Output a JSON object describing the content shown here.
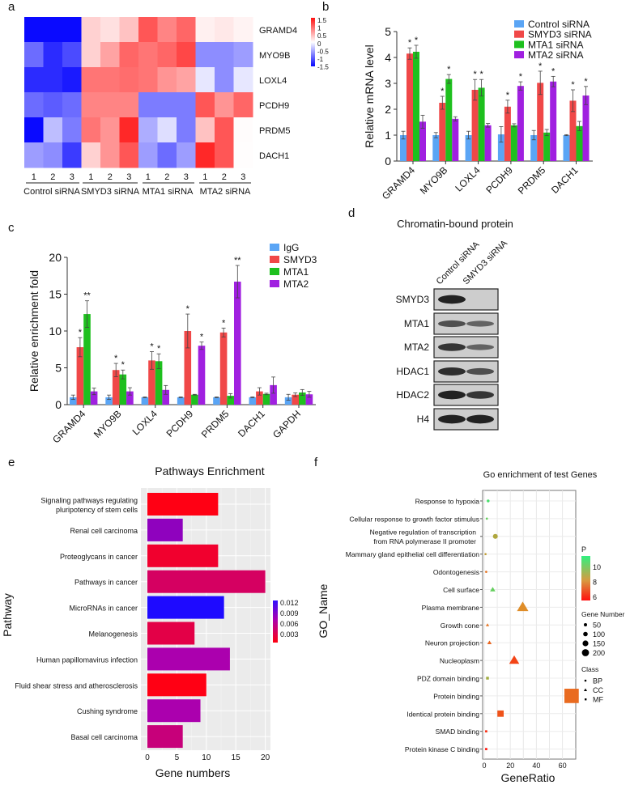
{
  "panel_labels": [
    "a",
    "b",
    "c",
    "d",
    "e",
    "f"
  ],
  "chart_data": [
    {
      "type": "heatmap",
      "panel": "a",
      "rows": [
        "GRAMD4",
        "MYO9B",
        "LOXL4",
        "PCDH9",
        "PRDM5",
        "DACH1"
      ],
      "column_numbers": [
        "1",
        "2",
        "3",
        "1",
        "2",
        "3",
        "1",
        "2",
        "3",
        "1",
        "2",
        "3"
      ],
      "groups": [
        "Control siRNA",
        "SMYD3 siRNA",
        "MTA1 siRNA",
        "MTA2 siRNA"
      ],
      "values": [
        [
          -1.5,
          -1.5,
          -1.5,
          0.3,
          0.2,
          0.4,
          1.1,
          0.8,
          1.0,
          0.1,
          0.15,
          0.08
        ],
        [
          -0.9,
          -1.3,
          -1.1,
          0.3,
          0.6,
          1.0,
          0.9,
          1.0,
          1.2,
          -0.7,
          -0.7,
          -0.6
        ],
        [
          -1.3,
          -1.3,
          -1.4,
          0.9,
          0.9,
          0.95,
          0.9,
          0.7,
          0.6,
          -0.15,
          -0.7,
          -0.15
        ],
        [
          -0.9,
          -1.0,
          -0.9,
          0.8,
          0.8,
          0.8,
          -0.8,
          -0.8,
          -0.8,
          1.1,
          0.7,
          1.0
        ],
        [
          -1.6,
          -0.4,
          -0.8,
          0.9,
          0.7,
          1.4,
          -0.5,
          -0.2,
          -0.8,
          0.4,
          1.1,
          0.02
        ],
        [
          -0.6,
          -0.7,
          -1.2,
          0.3,
          0.7,
          1.1,
          -0.6,
          -0.9,
          -0.6,
          1.4,
          1.1,
          0.01
        ]
      ],
      "colorbar_ticks": [
        "1.5",
        "1",
        "0.5",
        "0",
        "-0.5",
        "-1",
        "-1.5"
      ],
      "range": [
        -1.5,
        1.5
      ],
      "colors": {
        "low": "#0000ff",
        "mid": "#ffffff",
        "high": "#ff0000"
      }
    },
    {
      "type": "bar",
      "panel": "b",
      "categories": [
        "GRAMD4",
        "MYO9B",
        "LOXL4",
        "PCDH9",
        "PRDM5",
        "DACH1"
      ],
      "ylabel": "Relative mRNA level",
      "ylim": [
        0,
        5
      ],
      "yticks": [
        "0",
        "1",
        "2",
        "3",
        "4",
        "5"
      ],
      "legend_position": "top-right",
      "series": [
        {
          "name": "Control siRNA",
          "color": "#5aa5f5",
          "values": [
            1.0,
            1.0,
            1.0,
            1.03,
            1.0,
            1.0
          ],
          "errors": [
            0.15,
            0.1,
            0.15,
            0.3,
            0.18,
            0.02
          ],
          "sig": [
            "",
            "",
            "",
            "",
            "",
            ""
          ]
        },
        {
          "name": "SMYD3 siRNA",
          "color": "#f04848",
          "values": [
            4.15,
            2.25,
            2.75,
            2.1,
            3.02,
            2.33
          ],
          "errors": [
            0.22,
            0.25,
            0.4,
            0.25,
            0.45,
            0.42
          ],
          "sig": [
            "*",
            "*",
            "*",
            "*",
            "*",
            "*"
          ]
        },
        {
          "name": "MTA1 siRNA",
          "color": "#1ec01e",
          "values": [
            4.22,
            3.17,
            2.83,
            1.38,
            1.1,
            1.35
          ],
          "errors": [
            0.25,
            0.17,
            0.32,
            0.06,
            0.12,
            0.18
          ],
          "sig": [
            "*",
            "*",
            "*",
            "",
            "",
            ""
          ]
        },
        {
          "name": "MTA2 siRNA",
          "color": "#a020e0",
          "values": [
            1.52,
            1.63,
            1.38,
            2.9,
            3.07,
            2.53
          ],
          "errors": [
            0.25,
            0.08,
            0.07,
            0.16,
            0.2,
            0.35
          ],
          "sig": [
            "",
            "",
            "",
            "*",
            "*",
            "*"
          ]
        }
      ]
    },
    {
      "type": "bar",
      "panel": "c",
      "categories": [
        "GRAMD4",
        "MYO9B",
        "LOXL4",
        "PCDH9",
        "PRDM5",
        "DACH1",
        "GAPDH"
      ],
      "ylabel": "Relative enrichment fold",
      "ylim": [
        0,
        20
      ],
      "yticks": [
        "0",
        "5",
        "10",
        "15",
        "20"
      ],
      "legend_position": "top-right",
      "series": [
        {
          "name": "IgG",
          "color": "#5aa5f5",
          "values": [
            1.0,
            1.0,
            1.0,
            1.0,
            1.0,
            1.0,
            1.0
          ],
          "errors": [
            0.3,
            0.3,
            0.05,
            0.05,
            0.05,
            0.05,
            0.4
          ],
          "sig": [
            "",
            "",
            "",
            "",
            "",
            "",
            ""
          ]
        },
        {
          "name": "SMYD3",
          "color": "#f04848",
          "values": [
            7.8,
            4.7,
            6.0,
            10.0,
            9.8,
            1.8,
            1.35
          ],
          "errors": [
            1.3,
            0.9,
            1.2,
            2.3,
            0.6,
            0.5,
            0.25
          ],
          "sig": [
            "*",
            "*",
            "*",
            "*",
            "*",
            "",
            ""
          ]
        },
        {
          "name": "MTA1",
          "color": "#1ec01e",
          "values": [
            12.3,
            4.1,
            5.9,
            1.35,
            1.2,
            1.45,
            1.65
          ],
          "errors": [
            1.8,
            0.6,
            1.0,
            0.05,
            0.3,
            0.1,
            0.4
          ],
          "sig": [
            "**",
            "*",
            "*",
            "",
            "",
            "",
            ""
          ]
        },
        {
          "name": "MTA2",
          "color": "#a020e0",
          "values": [
            1.8,
            1.8,
            2.0,
            8.0,
            16.7,
            2.65,
            1.4
          ],
          "errors": [
            0.45,
            0.5,
            0.6,
            0.5,
            2.2,
            1.1,
            0.4
          ],
          "sig": [
            "",
            "",
            "",
            "*",
            "**",
            "",
            ""
          ]
        }
      ]
    },
    {
      "type": "table",
      "panel": "d",
      "title": "Chromatin-bound protein",
      "lanes": [
        "Control siRNA",
        "SMYD3 siRNA"
      ],
      "proteins": [
        "SMYD3",
        "MTA1",
        "MTA2",
        "HDAC1",
        "HDAC2",
        "H4"
      ],
      "band_intensity": [
        [
          0.95,
          0.0
        ],
        [
          0.6,
          0.45
        ],
        [
          0.8,
          0.45
        ],
        [
          0.85,
          0.6
        ],
        [
          0.95,
          0.8
        ],
        [
          0.95,
          0.95
        ]
      ]
    },
    {
      "type": "bar",
      "orientation": "horizontal",
      "panel": "e",
      "title": "Pathways Enrichment",
      "xlabel": "Gene numbers",
      "ylabel": "Pathway",
      "xlim": [
        0,
        21
      ],
      "xticks": [
        "0",
        "5",
        "10",
        "15",
        "20"
      ],
      "categories": [
        [
          "Signaling pathways regulating",
          "pluripotency of stem cells"
        ],
        [
          "Renal cell carcinoma"
        ],
        [
          "Proteoglycans in cancer"
        ],
        [
          "Pathways in cancer"
        ],
        [
          "MicroRNAs in cancer"
        ],
        [
          "Melanogenesis"
        ],
        [
          "Human papillomavirus infection"
        ],
        [
          "Fluid shear stress and atherosclerosis"
        ],
        [
          "Cushing syndrome"
        ],
        [
          "Basal cell carcinoma"
        ]
      ],
      "values": [
        12,
        6,
        12,
        20,
        13,
        8,
        14,
        10,
        9,
        6
      ],
      "p_values": [
        0.001,
        0.008,
        0.002,
        0.004,
        0.012,
        0.003,
        0.007,
        0.001,
        0.007,
        0.005
      ],
      "colorbar_ticks": [
        "0.012",
        "0.009",
        "0.006",
        "0.003"
      ],
      "colors": {
        "low": "#ff0000",
        "mid": "#b000b0",
        "high": "#2000ff"
      }
    },
    {
      "type": "scatter",
      "panel": "f",
      "title": "Go enrichment of test Genes",
      "xlabel": "GeneRatio",
      "ylabel": "GO_Name",
      "xlim": [
        -2,
        70
      ],
      "xticks": [
        "0",
        "20",
        "40",
        "60"
      ],
      "points": [
        {
          "name": [
            "Response to hypoxia"
          ],
          "x": 3,
          "p": 11,
          "class": "BP",
          "genes": 10
        },
        {
          "name": [
            "Cellular response to growth factor stimulus"
          ],
          "x": 2,
          "p": 10.5,
          "class": "BP",
          "genes": 6
        },
        {
          "name": [
            "Negative regulation of transcription",
            "from RNA polymerase II promoter"
          ],
          "x": 8.5,
          "p": 9.3,
          "class": "BP",
          "genes": 30
        },
        {
          "name": [
            "Mammary gland epithelial cell differentiation"
          ],
          "x": 1,
          "p": 9,
          "class": "BP",
          "genes": 4
        },
        {
          "name": [
            "Odontogenesis"
          ],
          "x": 1.5,
          "p": 8,
          "class": "BP",
          "genes": 6
        },
        {
          "name": [
            "Cell surface"
          ],
          "x": 6.5,
          "p": 10.5,
          "class": "CC",
          "genes": 25
        },
        {
          "name": [
            "Plasma membrane"
          ],
          "x": 29.5,
          "p": 8.5,
          "class": "CC",
          "genes": 115
        },
        {
          "name": [
            "Growth cone"
          ],
          "x": 2.5,
          "p": 8,
          "class": "CC",
          "genes": 10
        },
        {
          "name": [
            "Neuron projection"
          ],
          "x": 4,
          "p": 7.7,
          "class": "CC",
          "genes": 17
        },
        {
          "name": [
            "Nucleoplasm"
          ],
          "x": 23,
          "p": 7,
          "class": "CC",
          "genes": 90
        },
        {
          "name": [
            "PDZ domain binding"
          ],
          "x": 2.5,
          "p": 9.5,
          "class": "MF",
          "genes": 10
        },
        {
          "name": [
            "Protein binding"
          ],
          "x": 67,
          "p": 7.8,
          "class": "MF",
          "genes": 260
        },
        {
          "name": [
            "Identical protein binding"
          ],
          "x": 12.5,
          "p": 7.3,
          "class": "MF",
          "genes": 50
        },
        {
          "name": [
            "SMAD binding"
          ],
          "x": 1.5,
          "p": 6.5,
          "class": "MF",
          "genes": 6
        },
        {
          "name": [
            "Protein kinase C binding"
          ],
          "x": 1.5,
          "p": 6,
          "class": "MF",
          "genes": 6
        }
      ],
      "legend": {
        "p_title": "P",
        "p_ticks": [
          "10",
          "8",
          "6"
        ],
        "size_title": "Gene Number",
        "size_ticks": [
          "50",
          "100",
          "150",
          "200"
        ],
        "class_title": "Class",
        "classes": [
          "BP",
          "CC",
          "MF"
        ]
      }
    }
  ]
}
